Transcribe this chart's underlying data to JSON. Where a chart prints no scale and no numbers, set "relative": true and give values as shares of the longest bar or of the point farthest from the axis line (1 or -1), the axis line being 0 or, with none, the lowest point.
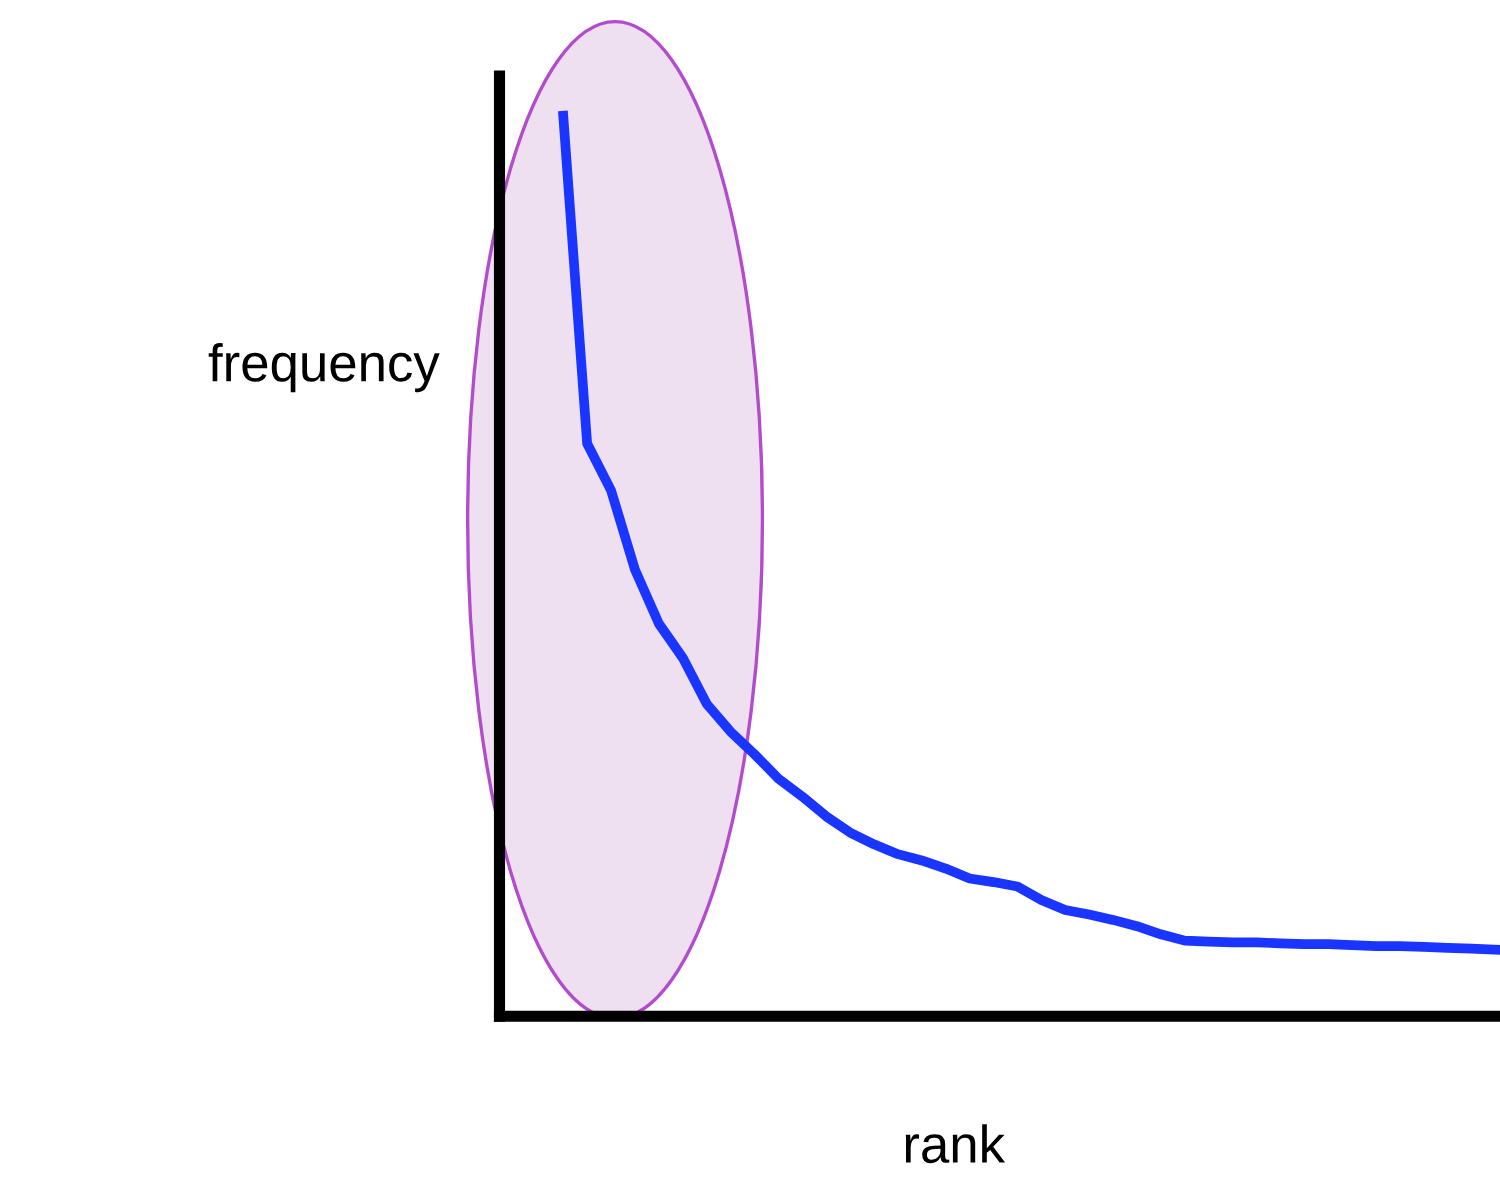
{
  "chart_data": {
    "type": "line",
    "relative": true,
    "xlabel": "rank",
    "ylabel": "frequency",
    "marker": "none",
    "line_style": "solid",
    "categories": [
      null,
      null,
      null,
      null,
      null,
      null,
      null,
      null,
      null,
      null,
      null,
      null,
      null,
      null,
      null,
      null,
      null,
      null,
      null,
      null,
      null,
      null,
      null,
      null,
      null,
      null,
      null,
      null,
      null,
      null,
      null,
      null,
      null,
      null,
      null,
      null,
      null,
      null,
      null,
      null
    ],
    "series": [
      {
        "color": "#1a35ff",
        "values": [
          1,
          0.636,
          0.584,
          0.496,
          0.436,
          0.398,
          0.347,
          0.316,
          0.291,
          0.264,
          0.244,
          0.222,
          0.204,
          0.191,
          0.18,
          0.173,
          0.164,
          0.153,
          0.149,
          0.144,
          0.129,
          0.118,
          0.113,
          0.107,
          0.1,
          0.091,
          0.084,
          0.083,
          0.082,
          0.082,
          0.081,
          0.08,
          0.08,
          0.079,
          0.078,
          0.078,
          0.077,
          0.076,
          0.075,
          0.074
        ]
      }
    ]
  }
}
